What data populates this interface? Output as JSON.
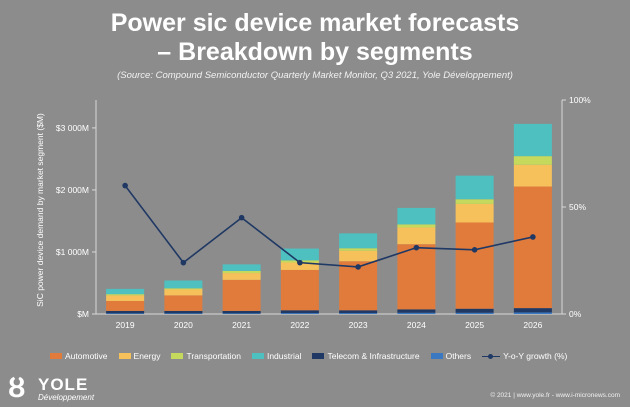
{
  "slide": {
    "title_line1": "Power sic device market forecasts",
    "title_line2": "– Breakdown by segments",
    "subtitle": "(Source: Compound Semiconductor Quarterly Market Monitor, Q3 2021, Yole Développement)",
    "footer": "© 2021 | www.yole.fr - www.i-micronews.com",
    "logo_name": "YOLE",
    "logo_sub": "Développement"
  },
  "colors": {
    "Automotive": "#e07b3c",
    "Energy": "#f6c15b",
    "Transportation": "#c5d95d",
    "Industrial": "#4ec0c0",
    "Telecom & Infrastructure": "#1f3864",
    "Others": "#3a78c2",
    "line": "#1f3864",
    "axis_text": "#ffffff"
  },
  "legend": [
    "Automotive",
    "Energy",
    "Transportation",
    "Industrial",
    "Telecom & Infrastructure",
    "Others",
    "Y-o-Y growth (%)"
  ],
  "chart_data": {
    "type": "bar",
    "stacked": true,
    "title": "Power sic device market forecasts – Breakdown by segments",
    "ylabel": "SiC power device demand by market segment ($M)",
    "y2label": "",
    "categories": [
      "2019",
      "2020",
      "2021",
      "2022",
      "2023",
      "2024",
      "2025",
      "2026"
    ],
    "ylim": [
      0,
      3450
    ],
    "yticks": [
      0,
      1000,
      2000,
      3000
    ],
    "ytick_labels": [
      "$M",
      "$1 000M",
      "$2 000M",
      "$3 000M"
    ],
    "y2lim": [
      0,
      100
    ],
    "y2ticks": [
      0,
      50,
      100
    ],
    "y2tick_labels": [
      "0%",
      "50%",
      "100%"
    ],
    "series": [
      {
        "name": "Others",
        "values": [
          10,
          10,
          10,
          15,
          15,
          20,
          20,
          25
        ]
      },
      {
        "name": "Telecom & Infrastructure",
        "values": [
          40,
          40,
          40,
          45,
          45,
          55,
          65,
          70
        ]
      },
      {
        "name": "Automotive",
        "values": [
          160,
          250,
          500,
          650,
          790,
          1050,
          1390,
          1960
        ]
      },
      {
        "name": "Energy",
        "values": [
          90,
          95,
          110,
          120,
          170,
          270,
          300,
          350
        ]
      },
      {
        "name": "Transportation",
        "values": [
          20,
          20,
          35,
          35,
          40,
          50,
          75,
          140
        ]
      },
      {
        "name": "Industrial",
        "values": [
          85,
          125,
          105,
          190,
          240,
          265,
          380,
          520
        ]
      }
    ],
    "line_series": {
      "name": "Y-o-Y growth (%)",
      "axis": "secondary",
      "values": [
        60,
        24,
        45,
        24,
        22,
        31,
        30,
        36
      ]
    },
    "grid": false,
    "legend_position": "bottom"
  }
}
